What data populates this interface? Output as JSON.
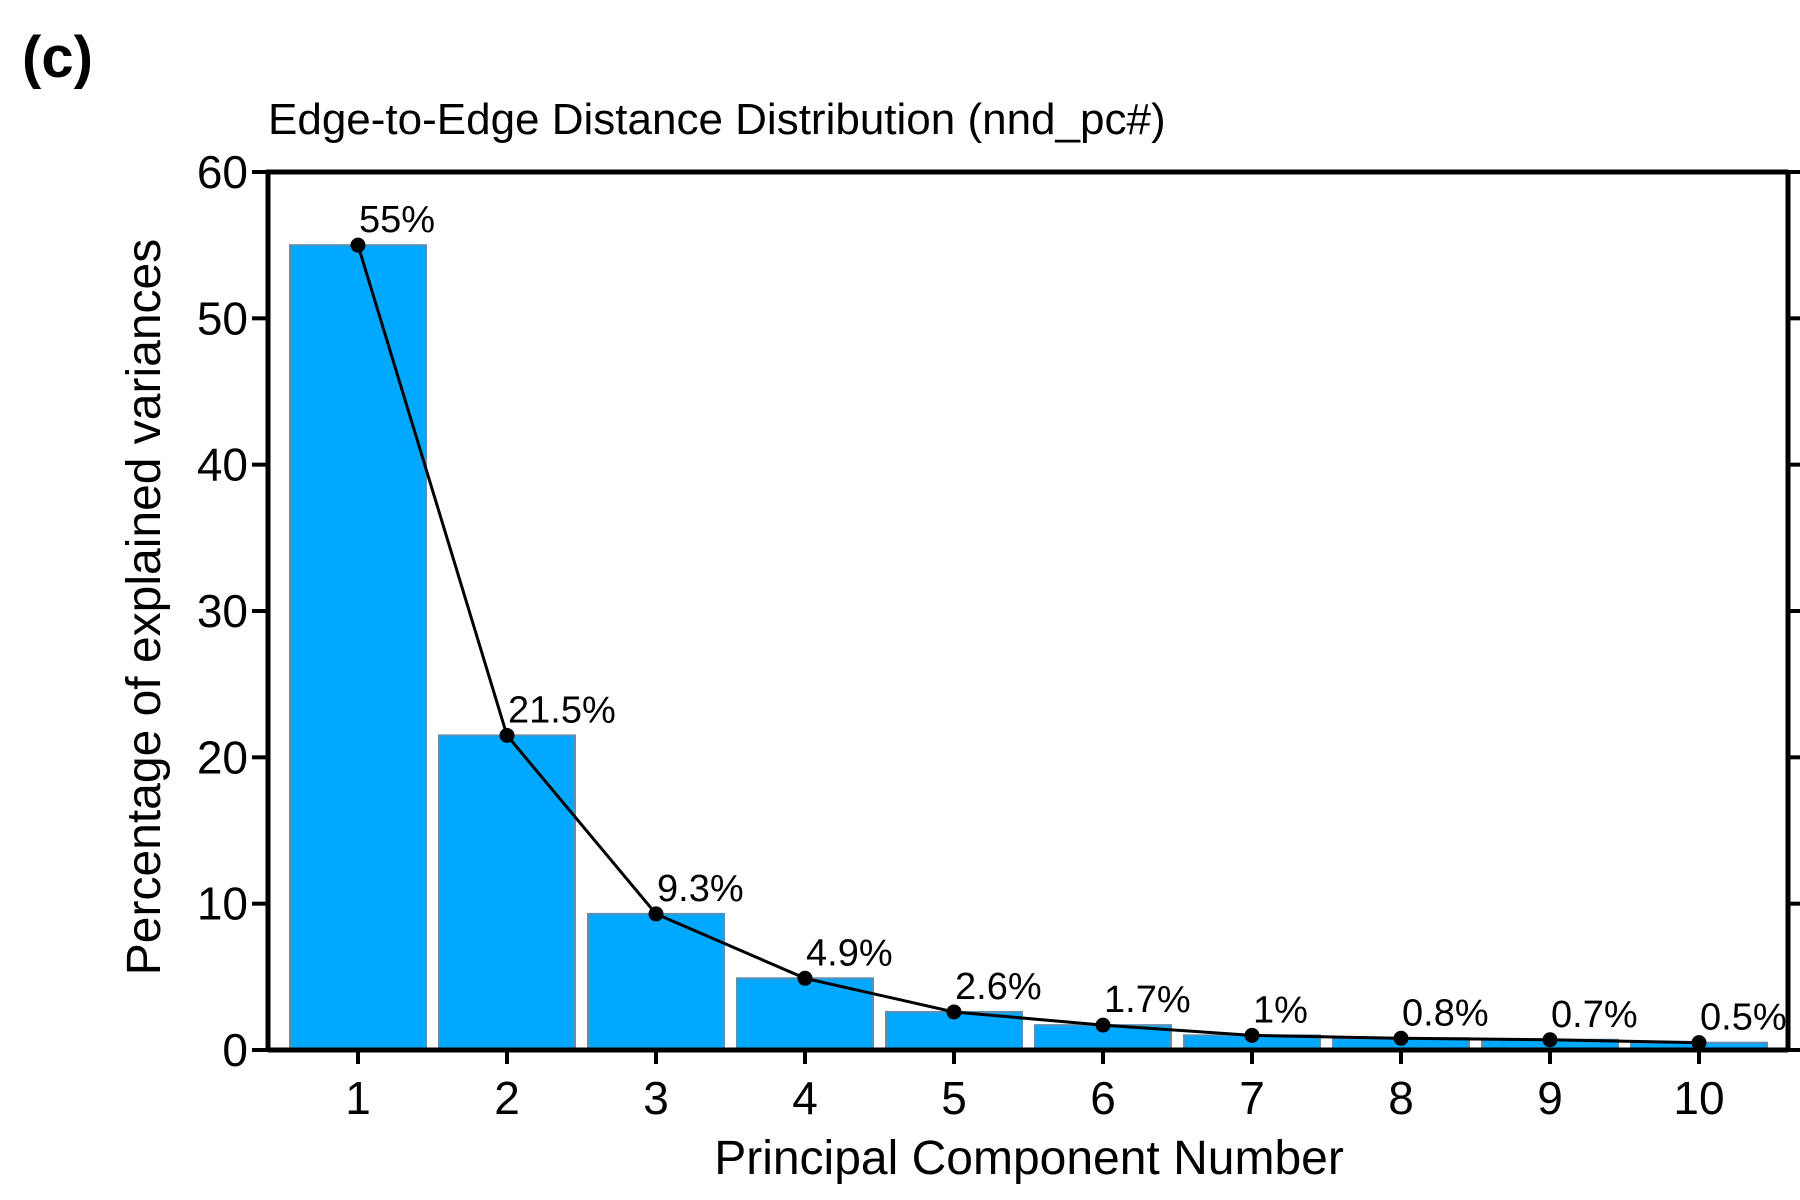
{
  "panel_label": "(c)",
  "colors": {
    "bar_fill": "#00A9FF",
    "bar_stroke": "#5E8FB0",
    "line": "#000000",
    "axis": "#000000"
  },
  "chart_data": {
    "type": "bar",
    "title": "Edge-to-Edge Distance Distribution (nnd_pc#)",
    "xlabel": "Principal Component Number",
    "ylabel": "Percentage of explained variances",
    "categories": [
      "1",
      "2",
      "3",
      "4",
      "5",
      "6",
      "7",
      "8",
      "9",
      "10"
    ],
    "values": [
      55,
      21.5,
      9.3,
      4.9,
      2.6,
      1.7,
      1,
      0.8,
      0.7,
      0.5
    ],
    "value_labels": [
      "55%",
      "21.5%",
      "9.3%",
      "4.9%",
      "2.6%",
      "1.7%",
      "1%",
      "0.8%",
      "0.7%",
      "0.5%"
    ],
    "overlay": "line with points",
    "ylim": [
      0,
      60
    ],
    "yticks": [
      "0",
      "10",
      "20",
      "30",
      "40",
      "50",
      "60"
    ],
    "grid": false,
    "legend": "none"
  }
}
